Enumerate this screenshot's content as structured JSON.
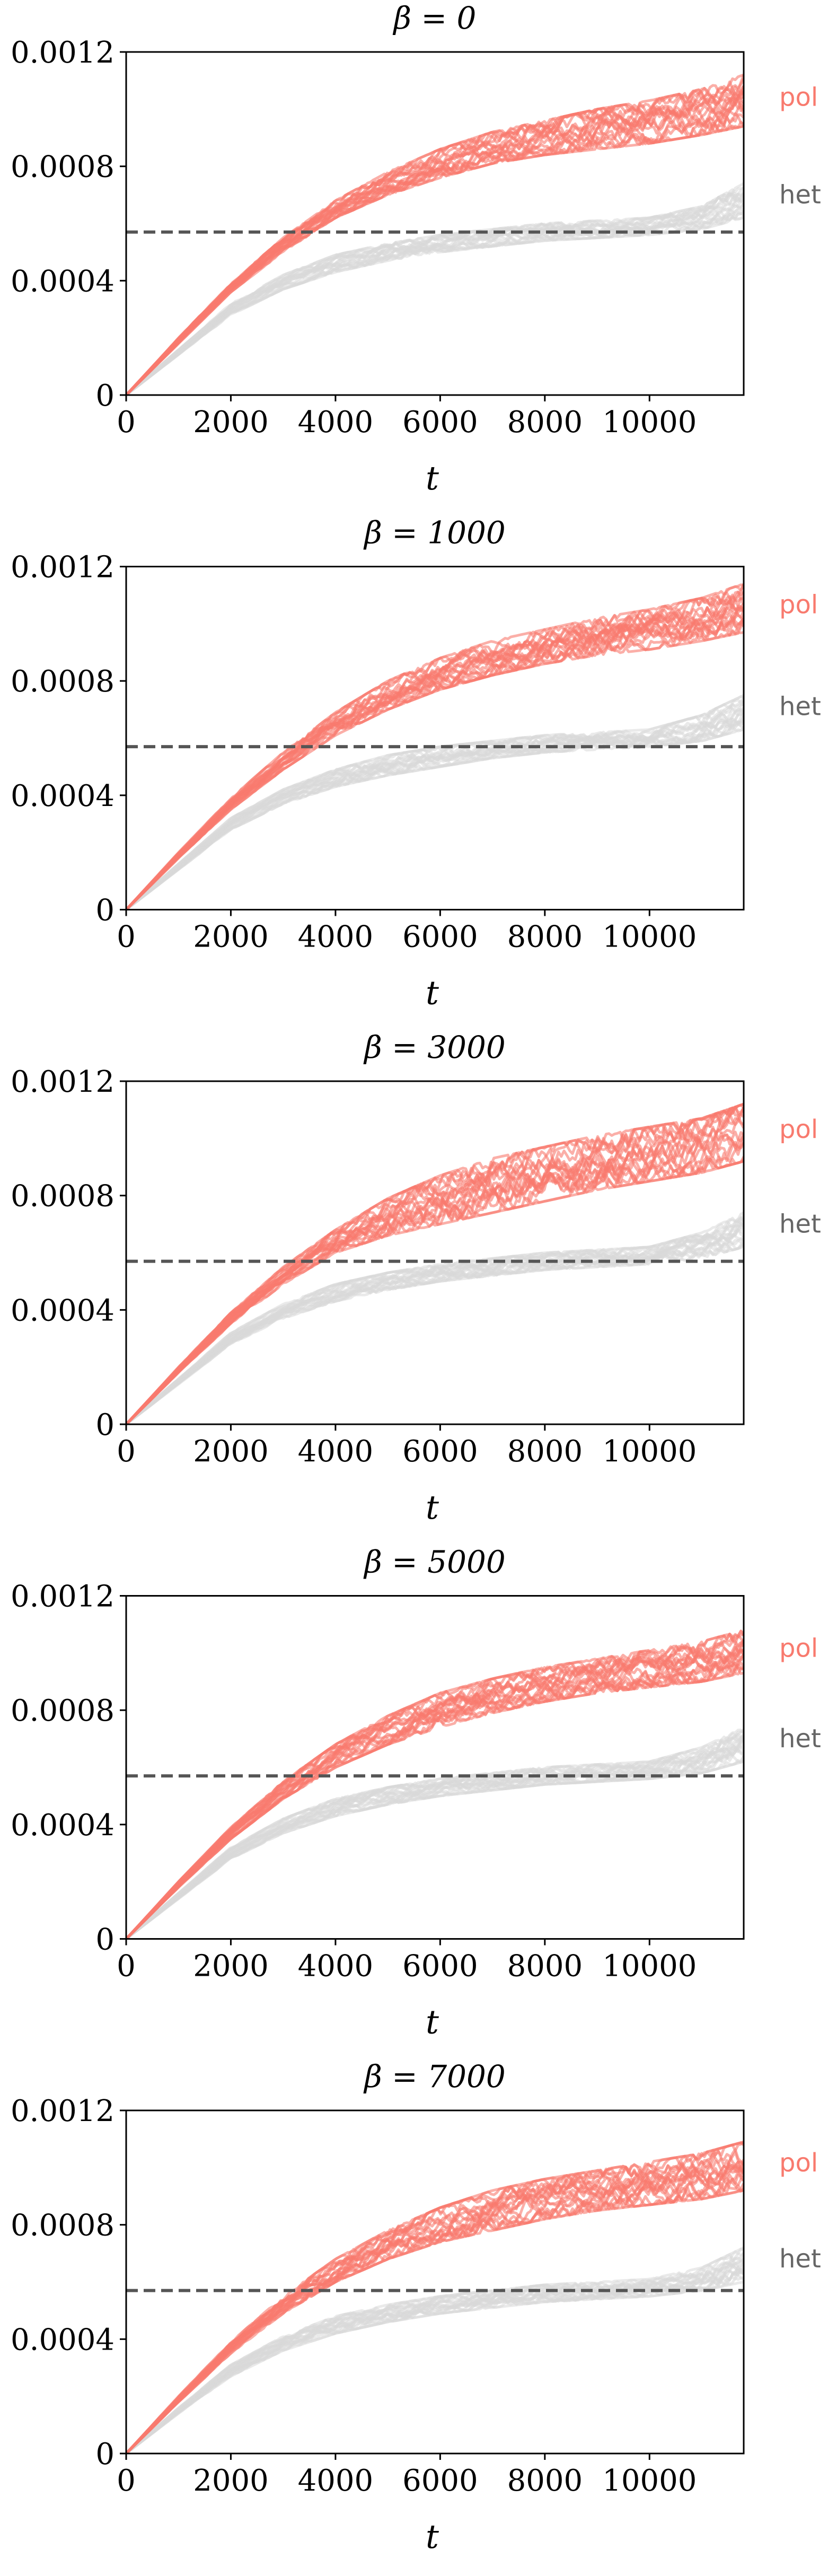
{
  "figure": {
    "colors": {
      "pol": "#f87a6e",
      "het": "#d8d8d8",
      "threshold": "#555555",
      "axis": "#000000",
      "text": "#000000"
    }
  },
  "chart_data": [
    {
      "type": "line",
      "title": "β = 0",
      "beta": 0,
      "xlabel": "t",
      "ylabel": "",
      "xlim": [
        0,
        11800
      ],
      "ylim": [
        0,
        0.0012
      ],
      "xticks": [
        0,
        2000,
        4000,
        6000,
        8000,
        10000
      ],
      "xtick_labels": [
        "0",
        "2000",
        "4000",
        "6000",
        "8000",
        "10000"
      ],
      "yticks": [
        0,
        0.0004,
        0.0008,
        0.0012
      ],
      "ytick_labels": [
        "0",
        "0.0004",
        "0.0008",
        "0.0012"
      ],
      "threshold": 0.00057,
      "grid": false,
      "legend": "right, inline labels",
      "x": [
        0,
        1000,
        2000,
        3000,
        4000,
        5000,
        6000,
        7000,
        8000,
        9000,
        10000,
        11000,
        11800
      ],
      "series": [
        {
          "name": "pol",
          "color": "#f87a6e",
          "runs": 20,
          "envelope_low": [
            0,
            0.00018,
            0.00036,
            0.0005,
            0.00062,
            0.0007,
            0.00076,
            0.00081,
            0.00084,
            0.00086,
            0.00088,
            0.00091,
            0.00094
          ],
          "envelope_high": [
            0,
            0.0002,
            0.00039,
            0.00055,
            0.00068,
            0.00078,
            0.00086,
            0.00092,
            0.00096,
            0.001,
            0.00103,
            0.00107,
            0.00112
          ]
        },
        {
          "name": "het",
          "color": "#d8d8d8",
          "runs": 20,
          "envelope_low": [
            0,
            0.00014,
            0.00028,
            0.00037,
            0.00043,
            0.00047,
            0.0005,
            0.00052,
            0.00054,
            0.00055,
            0.00056,
            0.00058,
            0.00062
          ],
          "envelope_high": [
            0,
            0.00016,
            0.00032,
            0.00042,
            0.00049,
            0.00053,
            0.00056,
            0.00058,
            0.0006,
            0.00061,
            0.00062,
            0.00066,
            0.00074
          ]
        }
      ]
    },
    {
      "type": "line",
      "title": "β = 1000",
      "beta": 1000,
      "xlabel": "t",
      "ylabel": "",
      "xlim": [
        0,
        11800
      ],
      "ylim": [
        0,
        0.0012
      ],
      "xticks": [
        0,
        2000,
        4000,
        6000,
        8000,
        10000
      ],
      "xtick_labels": [
        "0",
        "2000",
        "4000",
        "6000",
        "8000",
        "10000"
      ],
      "yticks": [
        0,
        0.0004,
        0.0008,
        0.0012
      ],
      "ytick_labels": [
        "0",
        "0.0004",
        "0.0008",
        "0.0012"
      ],
      "threshold": 0.00057,
      "grid": false,
      "legend": "right, inline labels",
      "x": [
        0,
        1000,
        2000,
        3000,
        4000,
        5000,
        6000,
        7000,
        8000,
        9000,
        10000,
        11000,
        11800
      ],
      "series": [
        {
          "name": "pol",
          "color": "#f87a6e",
          "runs": 20,
          "envelope_low": [
            0,
            0.00018,
            0.00035,
            0.00049,
            0.00061,
            0.0007,
            0.00077,
            0.00082,
            0.00086,
            0.00089,
            0.00091,
            0.00094,
            0.00097
          ],
          "envelope_high": [
            0,
            0.0002,
            0.00039,
            0.00055,
            0.00069,
            0.0008,
            0.00088,
            0.00094,
            0.00098,
            0.00102,
            0.00105,
            0.00109,
            0.00114
          ]
        },
        {
          "name": "het",
          "color": "#d8d8d8",
          "runs": 20,
          "envelope_low": [
            0,
            0.00014,
            0.00028,
            0.00037,
            0.00043,
            0.00047,
            0.0005,
            0.00053,
            0.00055,
            0.00056,
            0.00057,
            0.00059,
            0.00063
          ],
          "envelope_high": [
            0,
            0.00016,
            0.00032,
            0.00042,
            0.00049,
            0.00054,
            0.00057,
            0.00059,
            0.00061,
            0.00062,
            0.00063,
            0.00068,
            0.00075
          ]
        }
      ]
    },
    {
      "type": "line",
      "title": "β = 3000",
      "beta": 3000,
      "xlabel": "t",
      "ylabel": "",
      "xlim": [
        0,
        11800
      ],
      "ylim": [
        0,
        0.0012
      ],
      "xticks": [
        0,
        2000,
        4000,
        6000,
        8000,
        10000
      ],
      "xtick_labels": [
        "0",
        "2000",
        "4000",
        "6000",
        "8000",
        "10000"
      ],
      "yticks": [
        0,
        0.0004,
        0.0008,
        0.0012
      ],
      "ytick_labels": [
        "0",
        "0.0004",
        "0.0008",
        "0.0012"
      ],
      "threshold": 0.00057,
      "grid": false,
      "legend": "right, inline labels",
      "x": [
        0,
        1000,
        2000,
        3000,
        4000,
        5000,
        6000,
        7000,
        8000,
        9000,
        10000,
        11000,
        11800
      ],
      "series": [
        {
          "name": "pol",
          "color": "#f87a6e",
          "runs": 20,
          "envelope_low": [
            0,
            0.00018,
            0.00035,
            0.00049,
            0.0006,
            0.00066,
            0.0007,
            0.00074,
            0.00078,
            0.00082,
            0.00085,
            0.00088,
            0.00092
          ],
          "envelope_high": [
            0,
            0.0002,
            0.00039,
            0.00055,
            0.00068,
            0.00079,
            0.00087,
            0.00093,
            0.00097,
            0.00101,
            0.00104,
            0.00107,
            0.00112
          ]
        },
        {
          "name": "het",
          "color": "#d8d8d8",
          "runs": 20,
          "envelope_low": [
            0,
            0.00014,
            0.00028,
            0.00037,
            0.00043,
            0.00047,
            0.0005,
            0.00052,
            0.00054,
            0.00055,
            0.00056,
            0.00058,
            0.00062
          ],
          "envelope_high": [
            0,
            0.00016,
            0.00032,
            0.00042,
            0.00049,
            0.00053,
            0.00056,
            0.00058,
            0.0006,
            0.00061,
            0.00062,
            0.00067,
            0.00074
          ]
        }
      ]
    },
    {
      "type": "line",
      "title": "β = 5000",
      "beta": 5000,
      "xlabel": "t",
      "ylabel": "",
      "xlim": [
        0,
        11800
      ],
      "ylim": [
        0,
        0.0012
      ],
      "xticks": [
        0,
        2000,
        4000,
        6000,
        8000,
        10000
      ],
      "xtick_labels": [
        "0",
        "2000",
        "4000",
        "6000",
        "8000",
        "10000"
      ],
      "yticks": [
        0,
        0.0004,
        0.0008,
        0.0012
      ],
      "ytick_labels": [
        "0",
        "0.0004",
        "0.0008",
        "0.0012"
      ],
      "threshold": 0.00057,
      "grid": false,
      "legend": "right, inline labels",
      "x": [
        0,
        1000,
        2000,
        3000,
        4000,
        5000,
        6000,
        7000,
        8000,
        9000,
        10000,
        11000,
        11800
      ],
      "series": [
        {
          "name": "pol",
          "color": "#f87a6e",
          "runs": 20,
          "envelope_low": [
            0,
            0.00018,
            0.00035,
            0.00049,
            0.0006,
            0.00068,
            0.00074,
            0.00079,
            0.00083,
            0.00086,
            0.00088,
            0.0009,
            0.00093
          ],
          "envelope_high": [
            0,
            0.0002,
            0.00039,
            0.00055,
            0.00068,
            0.00078,
            0.00086,
            0.00091,
            0.00095,
            0.00098,
            0.00101,
            0.00104,
            0.00108
          ]
        },
        {
          "name": "het",
          "color": "#d8d8d8",
          "runs": 20,
          "envelope_low": [
            0,
            0.00014,
            0.00028,
            0.00037,
            0.00043,
            0.00047,
            0.0005,
            0.00052,
            0.00054,
            0.00055,
            0.00056,
            0.00058,
            0.00062
          ],
          "envelope_high": [
            0,
            0.00016,
            0.00032,
            0.00042,
            0.00049,
            0.00053,
            0.00056,
            0.00058,
            0.0006,
            0.00061,
            0.00062,
            0.00067,
            0.00074
          ]
        }
      ]
    },
    {
      "type": "line",
      "title": "β = 7000",
      "beta": 7000,
      "xlabel": "t",
      "ylabel": "",
      "xlim": [
        0,
        11800
      ],
      "ylim": [
        0,
        0.0012
      ],
      "xticks": [
        0,
        2000,
        4000,
        6000,
        8000,
        10000
      ],
      "xtick_labels": [
        "0",
        "2000",
        "4000",
        "6000",
        "8000",
        "10000"
      ],
      "yticks": [
        0,
        0.0004,
        0.0008,
        0.0012
      ],
      "ytick_labels": [
        "0",
        "0.0004",
        "0.0008",
        "0.0012"
      ],
      "threshold": 0.00057,
      "grid": false,
      "legend": "right, inline labels",
      "x": [
        0,
        1000,
        2000,
        3000,
        4000,
        5000,
        6000,
        7000,
        8000,
        9000,
        10000,
        11000,
        11800
      ],
      "series": [
        {
          "name": "pol",
          "color": "#f87a6e",
          "runs": 20,
          "envelope_low": [
            0,
            0.00018,
            0.00035,
            0.00049,
            0.0006,
            0.00068,
            0.00074,
            0.00078,
            0.00082,
            0.00085,
            0.00087,
            0.00089,
            0.00092
          ],
          "envelope_high": [
            0,
            0.0002,
            0.00039,
            0.00055,
            0.00068,
            0.00078,
            0.00086,
            0.00092,
            0.00096,
            0.00099,
            0.00102,
            0.00105,
            0.00109
          ]
        },
        {
          "name": "het",
          "color": "#d8d8d8",
          "runs": 20,
          "envelope_low": [
            0,
            0.00014,
            0.00027,
            0.00036,
            0.00042,
            0.00046,
            0.00049,
            0.00051,
            0.00053,
            0.00054,
            0.00055,
            0.00057,
            0.0006
          ],
          "envelope_high": [
            0,
            0.00016,
            0.00031,
            0.00041,
            0.00048,
            0.00052,
            0.00055,
            0.00057,
            0.00059,
            0.0006,
            0.00061,
            0.00065,
            0.00072
          ]
        }
      ]
    }
  ]
}
